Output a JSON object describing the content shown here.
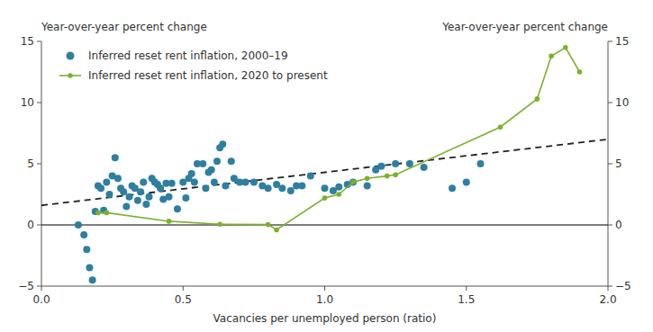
{
  "chart_data": {
    "type": "scatter",
    "x_label": "Vacancies per unemployed person (ratio)",
    "y_label": "Year-over-year percent change",
    "y2_label": "Year-over-year percent change",
    "series": [
      {
        "name": "Inferred reset rent inflation, 2000–19",
        "type": "scatter",
        "color": "#2e7fa0",
        "marker": "circle",
        "x": [
          0.13,
          0.15,
          0.16,
          0.17,
          0.18,
          0.19,
          0.2,
          0.21,
          0.22,
          0.23,
          0.24,
          0.25,
          0.26,
          0.27,
          0.28,
          0.29,
          0.3,
          0.31,
          0.32,
          0.33,
          0.34,
          0.35,
          0.36,
          0.37,
          0.38,
          0.39,
          0.4,
          0.41,
          0.42,
          0.43,
          0.44,
          0.45,
          0.46,
          0.48,
          0.5,
          0.51,
          0.52,
          0.53,
          0.54,
          0.55,
          0.57,
          0.58,
          0.59,
          0.6,
          0.61,
          0.62,
          0.63,
          0.64,
          0.65,
          0.67,
          0.68,
          0.7,
          0.72,
          0.75,
          0.78,
          0.8,
          0.83,
          0.85,
          0.88,
          0.9,
          0.92,
          0.95,
          1.0,
          1.03,
          1.05,
          1.08,
          1.1,
          1.15,
          1.18,
          1.2,
          1.25,
          1.3,
          1.35,
          1.45,
          1.5,
          1.55
        ],
        "values": [
          0.0,
          -0.8,
          -2.0,
          -3.5,
          -4.5,
          1.1,
          3.2,
          3.0,
          1.2,
          3.5,
          2.5,
          4.0,
          5.5,
          3.8,
          3.0,
          2.7,
          1.5,
          2.3,
          3.2,
          3.0,
          2.0,
          2.7,
          3.5,
          1.7,
          2.3,
          3.8,
          3.5,
          3.3,
          3.0,
          2.1,
          3.4,
          2.3,
          3.4,
          1.3,
          3.5,
          2.2,
          3.8,
          4.2,
          3.5,
          5.0,
          5.0,
          3.0,
          4.3,
          4.5,
          3.5,
          5.2,
          6.3,
          6.6,
          3.2,
          5.2,
          3.8,
          3.5,
          3.5,
          3.5,
          3.2,
          3.0,
          3.3,
          3.0,
          2.8,
          3.2,
          3.2,
          4.0,
          3.0,
          2.8,
          3.1,
          3.3,
          3.5,
          3.2,
          4.5,
          4.8,
          5.0,
          5.0,
          4.7,
          3.0,
          3.5,
          5.0
        ]
      },
      {
        "name": "Inferred reset rent inflation, 2020 to present",
        "type": "line",
        "color": "#7db030",
        "marker": "circle",
        "x": [
          0.2,
          0.23,
          0.45,
          0.63,
          0.8,
          0.83,
          1.0,
          1.05,
          1.1,
          1.15,
          1.22,
          1.25,
          1.62,
          1.75,
          1.8,
          1.85,
          1.9
        ],
        "values": [
          1.0,
          1.0,
          0.3,
          0.05,
          0.03,
          -0.4,
          2.2,
          2.5,
          3.5,
          3.8,
          4.0,
          4.1,
          8.0,
          10.3,
          13.8,
          14.5,
          12.5
        ]
      },
      {
        "type": "line",
        "color": "#222222",
        "line_style": "dashed",
        "x": [
          0.0,
          2.0
        ],
        "values": [
          1.6,
          7.0
        ]
      }
    ],
    "hlines": [
      0
    ],
    "xlim": [
      0,
      2.0
    ],
    "ylim": [
      -5,
      15
    ],
    "xticks": [
      {
        "value": 0,
        "label": "0.0"
      },
      0.5,
      {
        "value": 1.0,
        "label": "1.0"
      },
      1.5,
      {
        "value": 2.0,
        "label": "2.0"
      }
    ],
    "yticks": [
      {
        "value": -5,
        "label": "−5"
      },
      0,
      5,
      10,
      15
    ],
    "y2lim": [
      -5,
      15
    ],
    "y2ticks": [
      {
        "value": -5,
        "label": "−5"
      },
      0,
      5,
      10,
      15
    ],
    "grid": false,
    "legend": "upper left"
  }
}
